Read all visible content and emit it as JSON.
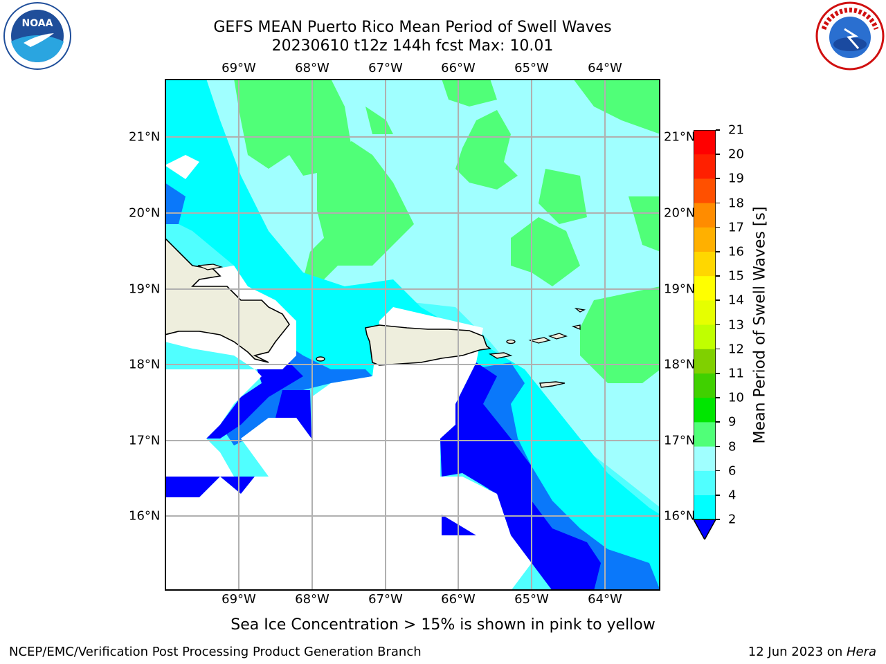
{
  "title": {
    "line1": "GEFS MEAN Puerto Rico Mean Period of Swell Waves",
    "line2": "20230610 t12z 144h fcst   Max: 10.01"
  },
  "logos": {
    "left": "noaa-logo",
    "left_text": "NOAA",
    "right": "nws-logo",
    "right_text": "NATIONAL WEATHER SERVICE"
  },
  "map": {
    "lon_labels": [
      "69°W",
      "68°W",
      "67°W",
      "66°W",
      "65°W",
      "64°W"
    ],
    "lat_labels": [
      "21°N",
      "20°N",
      "19°N",
      "18°N",
      "17°N",
      "16°N"
    ],
    "land_color": "#eeeedd",
    "coast_color": "#000000",
    "grid_color": "#b0b0b0"
  },
  "colorbar": {
    "label": "Mean Period of Swell Waves [s]",
    "ticks": [
      "2",
      "4",
      "6",
      "8",
      "9",
      "10",
      "11",
      "12",
      "13",
      "14",
      "15",
      "16",
      "17",
      "18",
      "19",
      "20",
      "21"
    ],
    "colors": [
      "#0000ff",
      "#0a78fa",
      "#00ffff",
      "#50ffff",
      "#a0ffff",
      "#50ff78",
      "#00e600",
      "#40d000",
      "#80d000",
      "#c0ff00",
      "#e6ff00",
      "#ffff00",
      "#ffd700",
      "#ffb000",
      "#ff8c00",
      "#ff5000",
      "#ff2000",
      "#ff0000"
    ]
  },
  "note": "Sea Ice Concentration > 15% is shown in pink to yellow",
  "footer": {
    "left": "NCEP/EMC/Verification Post Processing Product Generation Branch",
    "date": "12 Jun 2023 on ",
    "host": "Hera"
  }
}
